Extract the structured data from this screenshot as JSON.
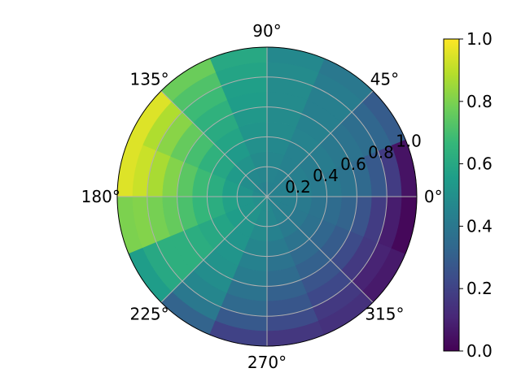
{
  "chart_data": {
    "type": "heatmap",
    "projection": "polar",
    "colormap": "viridis",
    "colors": [
      "#440154",
      "#482878",
      "#3e4989",
      "#31688e",
      "#26828e",
      "#1f9e89",
      "#35b779",
      "#6ece58",
      "#b5de2b",
      "#fde725"
    ],
    "theta_tick_labels": [
      "0°",
      "45°",
      "90°",
      "135°",
      "180°",
      "225°",
      "270°",
      "315°"
    ],
    "r_tick_labels": [
      "0.2",
      "0.4",
      "0.6",
      "0.8",
      "1.0"
    ],
    "r_ticks": [
      0.2,
      0.4,
      0.6,
      0.8,
      1.0
    ],
    "rlim": [
      0,
      1.0
    ],
    "r_edges": [
      0.0,
      0.1,
      0.2,
      0.3,
      0.4,
      0.5,
      0.6,
      0.7,
      0.8,
      0.9,
      1.0
    ],
    "theta_edges_deg": [
      0,
      22.5,
      45,
      67.5,
      90,
      112.5,
      135,
      157.5,
      180,
      202.5,
      225,
      247.5,
      270,
      292.5,
      315,
      337.5,
      360
    ],
    "values": [
      [
        0.44,
        0.44,
        0.44,
        0.44,
        0.44,
        0.45,
        0.47,
        0.48,
        0.5,
        0.5,
        0.5,
        0.49,
        0.47,
        0.45,
        0.44,
        0.44
      ],
      [
        0.44,
        0.43,
        0.44,
        0.45,
        0.46,
        0.47,
        0.49,
        0.51,
        0.52,
        0.52,
        0.51,
        0.49,
        0.46,
        0.44,
        0.43,
        0.43
      ],
      [
        0.43,
        0.43,
        0.44,
        0.46,
        0.48,
        0.51,
        0.54,
        0.56,
        0.57,
        0.55,
        0.52,
        0.48,
        0.44,
        0.41,
        0.4,
        0.41
      ],
      [
        0.41,
        0.42,
        0.44,
        0.47,
        0.5,
        0.54,
        0.59,
        0.62,
        0.62,
        0.58,
        0.52,
        0.46,
        0.41,
        0.38,
        0.37,
        0.38
      ],
      [
        0.4,
        0.42,
        0.45,
        0.48,
        0.52,
        0.58,
        0.64,
        0.68,
        0.66,
        0.6,
        0.52,
        0.44,
        0.38,
        0.34,
        0.33,
        0.35
      ],
      [
        0.38,
        0.4,
        0.44,
        0.48,
        0.53,
        0.61,
        0.7,
        0.74,
        0.71,
        0.62,
        0.51,
        0.42,
        0.35,
        0.31,
        0.29,
        0.32
      ],
      [
        0.34,
        0.38,
        0.43,
        0.48,
        0.55,
        0.64,
        0.76,
        0.81,
        0.76,
        0.63,
        0.49,
        0.38,
        0.31,
        0.26,
        0.23,
        0.26
      ],
      [
        0.28,
        0.36,
        0.43,
        0.48,
        0.56,
        0.68,
        0.82,
        0.87,
        0.79,
        0.63,
        0.46,
        0.34,
        0.27,
        0.22,
        0.17,
        0.18
      ],
      [
        0.18,
        0.33,
        0.42,
        0.48,
        0.58,
        0.72,
        0.88,
        0.92,
        0.81,
        0.6,
        0.4,
        0.28,
        0.23,
        0.17,
        0.1,
        0.08
      ],
      [
        0.05,
        0.29,
        0.4,
        0.47,
        0.6,
        0.77,
        0.95,
        0.95,
        0.8,
        0.55,
        0.32,
        0.2,
        0.16,
        0.14,
        0.07,
        0.02
      ]
    ],
    "colorbar": {
      "ticks": [
        0.0,
        0.2,
        0.4,
        0.6,
        0.8,
        1.0
      ],
      "tick_labels": [
        "0.0",
        "0.2",
        "0.4",
        "0.6",
        "0.8",
        "1.0"
      ],
      "vlim": [
        0.0,
        1.0
      ]
    },
    "grid": true,
    "title": "",
    "xlabel": "",
    "ylabel": ""
  }
}
